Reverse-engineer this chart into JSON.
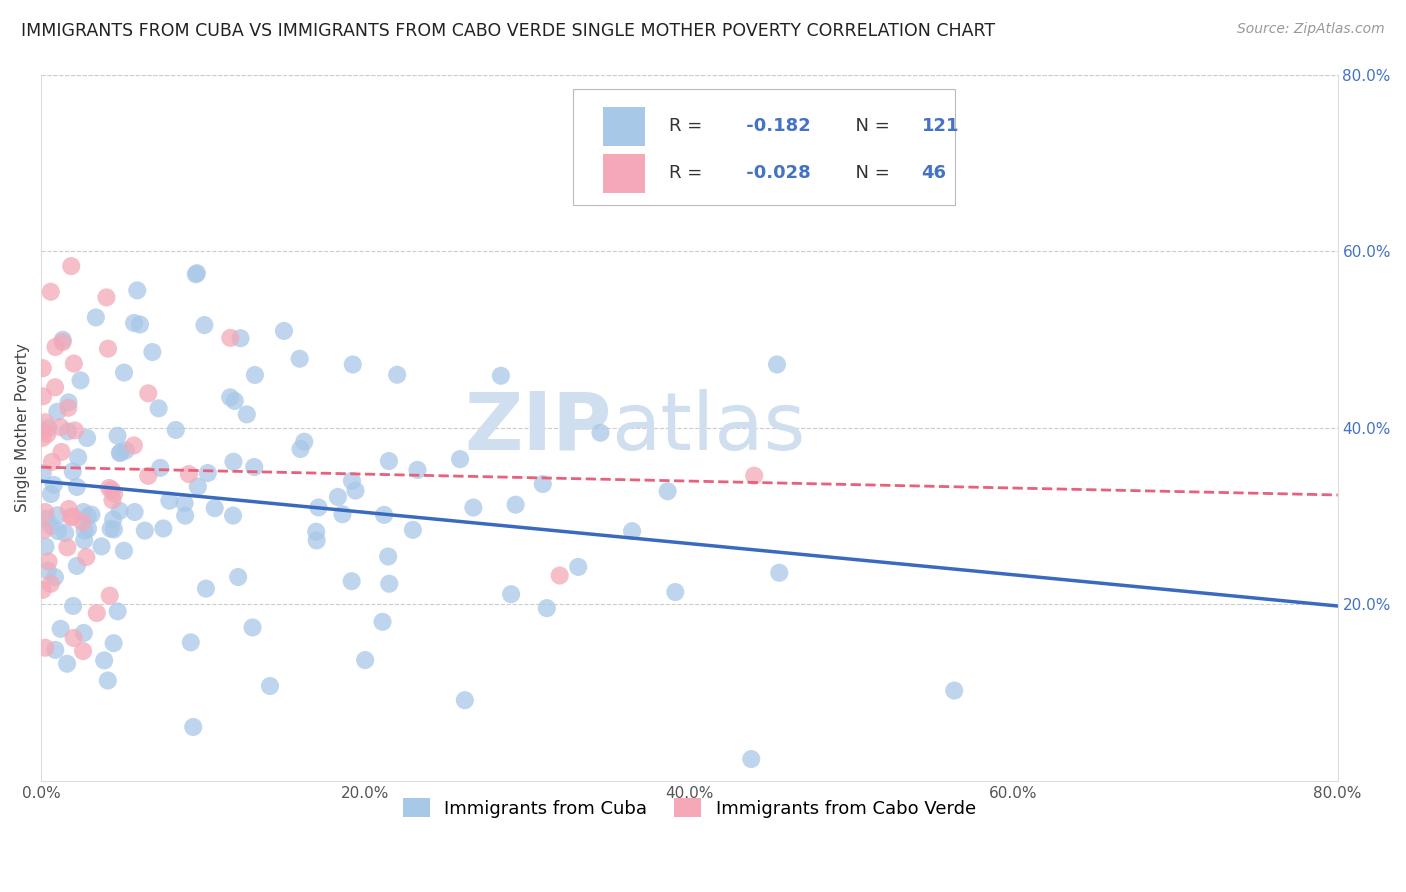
{
  "title": "IMMIGRANTS FROM CUBA VS IMMIGRANTS FROM CABO VERDE SINGLE MOTHER POVERTY CORRELATION CHART",
  "source": "Source: ZipAtlas.com",
  "ylabel": "Single Mother Poverty",
  "legend_cuba": "Immigrants from Cuba",
  "legend_cabo": "Immigrants from Cabo Verde",
  "cuba_R": -0.182,
  "cuba_N": 121,
  "cabo_R": -0.028,
  "cabo_N": 46,
  "cuba_color": "#a8c8e8",
  "cabo_color": "#f4a8b8",
  "cuba_line_color": "#3a6abf",
  "cabo_line_color": "#e8607a",
  "xlim": [
    0,
    0.8
  ],
  "ylim": [
    0,
    0.8
  ],
  "xticks": [
    0.0,
    0.2,
    0.4,
    0.6,
    0.8
  ],
  "yticks_right": [
    0.2,
    0.4,
    0.6,
    0.8
  ],
  "xticklabels": [
    "0.0%",
    "20.0%",
    "40.0%",
    "60.0%",
    "80.0%"
  ],
  "yticklabels_right": [
    "20.0%",
    "40.0%",
    "60.0%",
    "80.0%"
  ],
  "watermark_zip": "ZIP",
  "watermark_atlas": "atlas",
  "watermark_color": "#d0dff0",
  "background_color": "#ffffff",
  "grid_color": "#cccccc",
  "title_fontsize": 12.5,
  "axis_label_fontsize": 11,
  "tick_fontsize": 11,
  "source_fontsize": 10,
  "right_tick_color": "#4472c4"
}
